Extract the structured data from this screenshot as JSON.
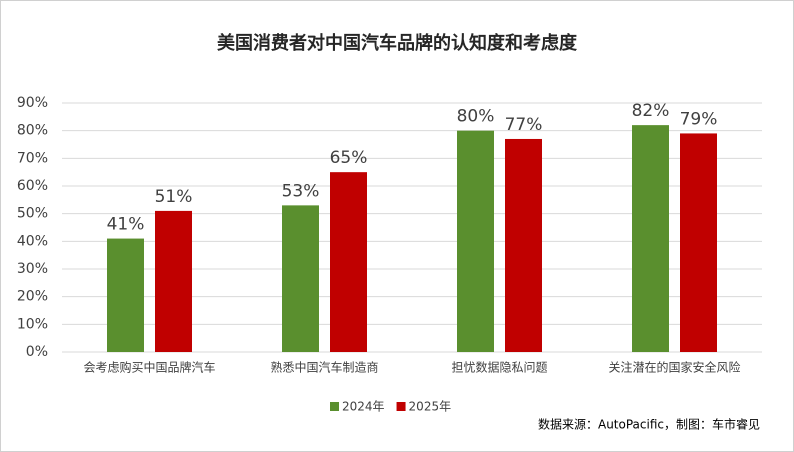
{
  "chart_data": {
    "type": "bar",
    "title": "美国消费者对中国汽车品牌的认知度和考虑度",
    "categories": [
      "会考虑购买中国品牌汽车",
      "熟悉中国汽车制造商",
      "担忧数据隐私问题",
      "关注潜在的国家安全风险"
    ],
    "series": [
      {
        "name": "2024年",
        "color": "#5a8f2e",
        "values": [
          41,
          53,
          80,
          82
        ],
        "value_labels": [
          "41%",
          "53%",
          "80%",
          "82%"
        ]
      },
      {
        "name": "2025年",
        "color": "#c00000",
        "values": [
          51,
          65,
          77,
          79
        ],
        "value_labels": [
          "51%",
          "65%",
          "77%",
          "79%"
        ]
      }
    ],
    "ylim": [
      0,
      90
    ],
    "yticks": [
      {
        "value": 0,
        "label": "0%"
      },
      {
        "value": 10,
        "label": "10%"
      },
      {
        "value": 20,
        "label": "20%"
      },
      {
        "value": 30,
        "label": "30%"
      },
      {
        "value": 40,
        "label": "40%"
      },
      {
        "value": 50,
        "label": "50%"
      },
      {
        "value": 60,
        "label": "60%"
      },
      {
        "value": 70,
        "label": "70%"
      },
      {
        "value": 80,
        "label": "80%"
      },
      {
        "value": 90,
        "label": "90%"
      }
    ],
    "grid": true,
    "legend": "bottom",
    "source": "数据来源：AutoPacific，制图：车市睿见"
  }
}
